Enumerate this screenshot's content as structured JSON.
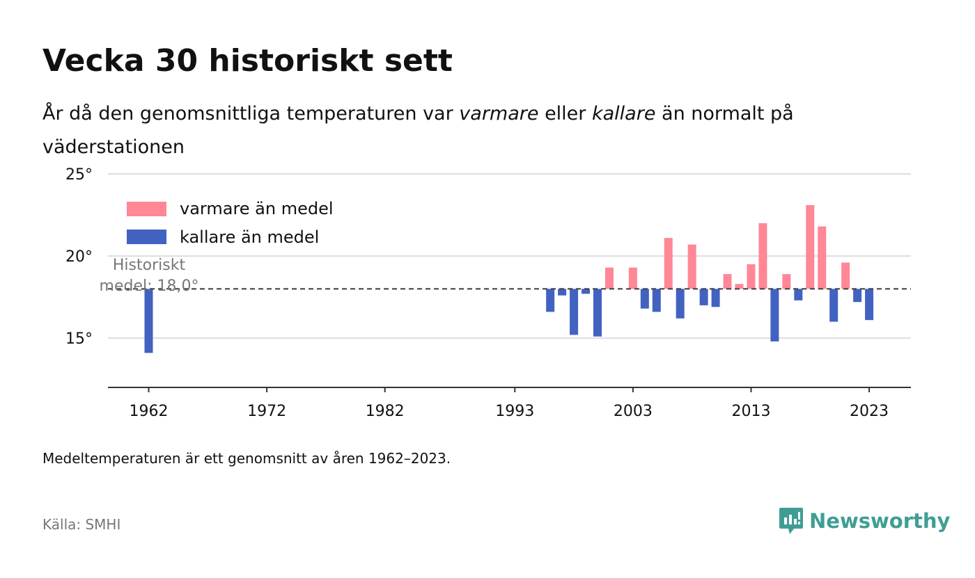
{
  "title": "Vecka 30 historiskt sett",
  "subtitle": {
    "part1": "År då den genomsnittliga temperaturen var ",
    "warm_word": "varmare",
    "part2": " eller ",
    "cold_word": "kallare",
    "part3": " än normalt på väderstationen"
  },
  "note": "Medeltemperaturen är ett genomsnitt av åren 1962–2023.",
  "source": "Källa: SMHI",
  "brand": {
    "name": "Newsworthy",
    "icon": "newsworthy-logo-icon",
    "color": "#3f9e94"
  },
  "colors": {
    "warm": "#ff8796",
    "cold": "#4162c0",
    "grid": "#dddddd",
    "axis": "#333333",
    "reference": "#444444",
    "annotation": "#777777"
  },
  "chart_data": {
    "type": "bar",
    "title": "Vecka 30 historiskt sett",
    "ylim": [
      12.0,
      25.0
    ],
    "y_ticks": [
      15,
      20,
      25
    ],
    "y_tick_labels": [
      "15°",
      "20°",
      "25°"
    ],
    "x_ticks": [
      1962,
      1972,
      1982,
      1993,
      2003,
      2013,
      2023
    ],
    "x_tick_labels": [
      "1962",
      "1972",
      "1982",
      "1993",
      "2003",
      "2013",
      "2023"
    ],
    "grid": true,
    "legend_position": "top-left",
    "legend": [
      {
        "key": "warm",
        "label": "varmare än medel"
      },
      {
        "key": "cold",
        "label": "kallare än medel"
      }
    ],
    "reference": {
      "value": 18.0,
      "label_line1": "Historiskt",
      "label_line2": "medel: 18,0°"
    },
    "x": [
      1962,
      1996,
      1997,
      1998,
      1999,
      2000,
      2001,
      2003,
      2004,
      2005,
      2006,
      2007,
      2008,
      2009,
      2010,
      2011,
      2012,
      2013,
      2014,
      2015,
      2016,
      2017,
      2018,
      2019,
      2020,
      2021,
      2022,
      2023
    ],
    "values": [
      14.1,
      16.6,
      17.6,
      15.2,
      17.7,
      15.1,
      19.3,
      19.3,
      16.8,
      16.6,
      21.1,
      16.2,
      20.7,
      17.0,
      16.9,
      18.9,
      18.3,
      19.5,
      22.0,
      14.8,
      18.9,
      17.3,
      23.1,
      21.8,
      16.0,
      19.6,
      17.2,
      16.1
    ]
  }
}
